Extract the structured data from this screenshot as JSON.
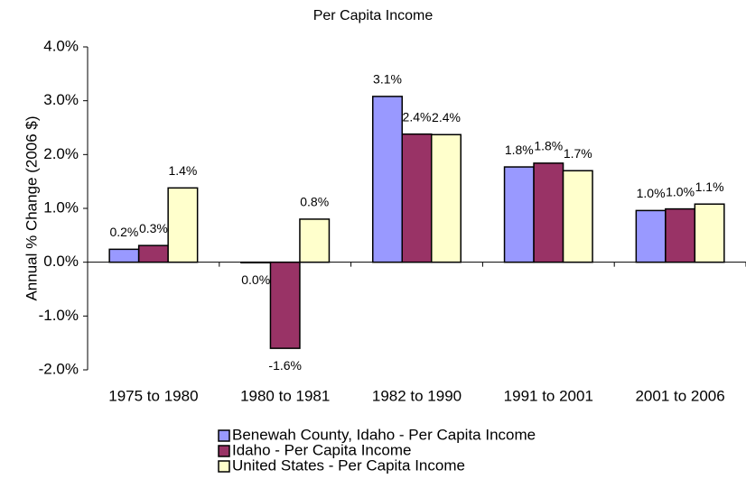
{
  "chart_data": {
    "type": "bar",
    "title": "Per Capita Income",
    "y_label": "Annual % Change (2006 $)",
    "categories": [
      "1975 to 1980",
      "1980 to 1981",
      "1982 to 1990",
      "1991 to 2001",
      "2001 to 2006"
    ],
    "series": [
      {
        "name": "Benewah County, Idaho - Per Capita Income",
        "color": "#9999ff",
        "values": [
          0.24,
          -0.01,
          3.08,
          1.77,
          0.96
        ],
        "value_labels": [
          "0.2%",
          "0.0%",
          "3.1%",
          "1.8%",
          "1.0%"
        ]
      },
      {
        "name": "Idaho - Per Capita Income",
        "color": "#993366",
        "values": [
          0.31,
          -1.6,
          2.38,
          1.84,
          0.99
        ],
        "value_labels": [
          "0.3%",
          "-1.6%",
          "2.4%",
          "1.8%",
          "1.0%"
        ]
      },
      {
        "name": "United States - Per Capita Income",
        "color": "#ffffcc",
        "values": [
          1.38,
          0.8,
          2.37,
          1.7,
          1.08
        ],
        "value_labels": [
          "1.4%",
          "0.8%",
          "2.4%",
          "1.7%",
          "1.1%"
        ]
      }
    ],
    "ylim": [
      -2,
      4
    ],
    "yticks": [
      {
        "value": -2,
        "label": "-2.0%"
      },
      {
        "value": -1,
        "label": "-1.0%"
      },
      {
        "value": 0,
        "label": "0.0%"
      },
      {
        "value": 1,
        "label": "1.0%"
      },
      {
        "value": 2,
        "label": "2.0%"
      },
      {
        "value": 3,
        "label": "3.0%"
      },
      {
        "value": 4,
        "label": "4.0%"
      }
    ],
    "legend": "bottom"
  }
}
